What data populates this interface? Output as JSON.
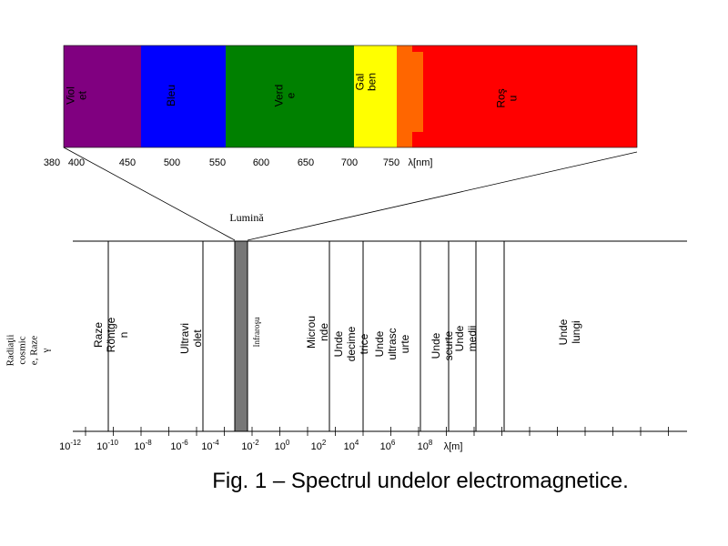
{
  "visible_spectrum": {
    "bands": [
      {
        "label": [
          "Viol",
          "et"
        ],
        "color": "#800080"
      },
      {
        "label": [
          "Bleu"
        ],
        "color": "#0000ff"
      },
      {
        "label": [
          "Verd",
          "e"
        ],
        "color": "#008000"
      },
      {
        "label": [
          "Gal",
          "ben"
        ],
        "color": "#ffff00"
      },
      {
        "label": [],
        "color": "#ff6600"
      },
      {
        "label": [
          "Roş",
          "u"
        ],
        "color": "#ff0000"
      }
    ],
    "axis_labels": [
      "380",
      "400",
      "450",
      "500",
      "550",
      "600",
      "650",
      "700",
      "750",
      "λ[nm]"
    ]
  },
  "light_label": "Lumină",
  "full_spectrum": {
    "regions": [
      [
        "Radiaţii",
        "cosmic",
        "e, Raze",
        "γ"
      ],
      [
        "Raze",
        "Röntge",
        "n"
      ],
      [
        "Ultravi",
        "olet"
      ],
      [
        "Infraroşu"
      ],
      [
        "Microu",
        "nde"
      ],
      [
        "Unde",
        "decime",
        "trice"
      ],
      [
        "Unde",
        "ultrasc",
        "urte"
      ],
      [
        "Unde",
        "scurte"
      ],
      [
        "Unde",
        "medii"
      ],
      [
        "Unde",
        "lungi"
      ]
    ],
    "axis_labels": [
      {
        "base": "10",
        "exp": "-12"
      },
      {
        "base": "10",
        "exp": "-10"
      },
      {
        "base": "10",
        "exp": "-8"
      },
      {
        "base": "10",
        "exp": "-6"
      },
      {
        "base": "10",
        "exp": "-4"
      },
      {
        "base": "10",
        "exp": "-2"
      },
      {
        "base": "10",
        "exp": "0"
      },
      {
        "base": "10",
        "exp": "2"
      },
      {
        "base": "10",
        "exp": "4"
      },
      {
        "base": "10",
        "exp": "6"
      },
      {
        "base": "10",
        "exp": "8"
      }
    ],
    "unit": "λ[m]"
  },
  "caption": "Fig. 1 – Spectrul undelor electromagnetice."
}
